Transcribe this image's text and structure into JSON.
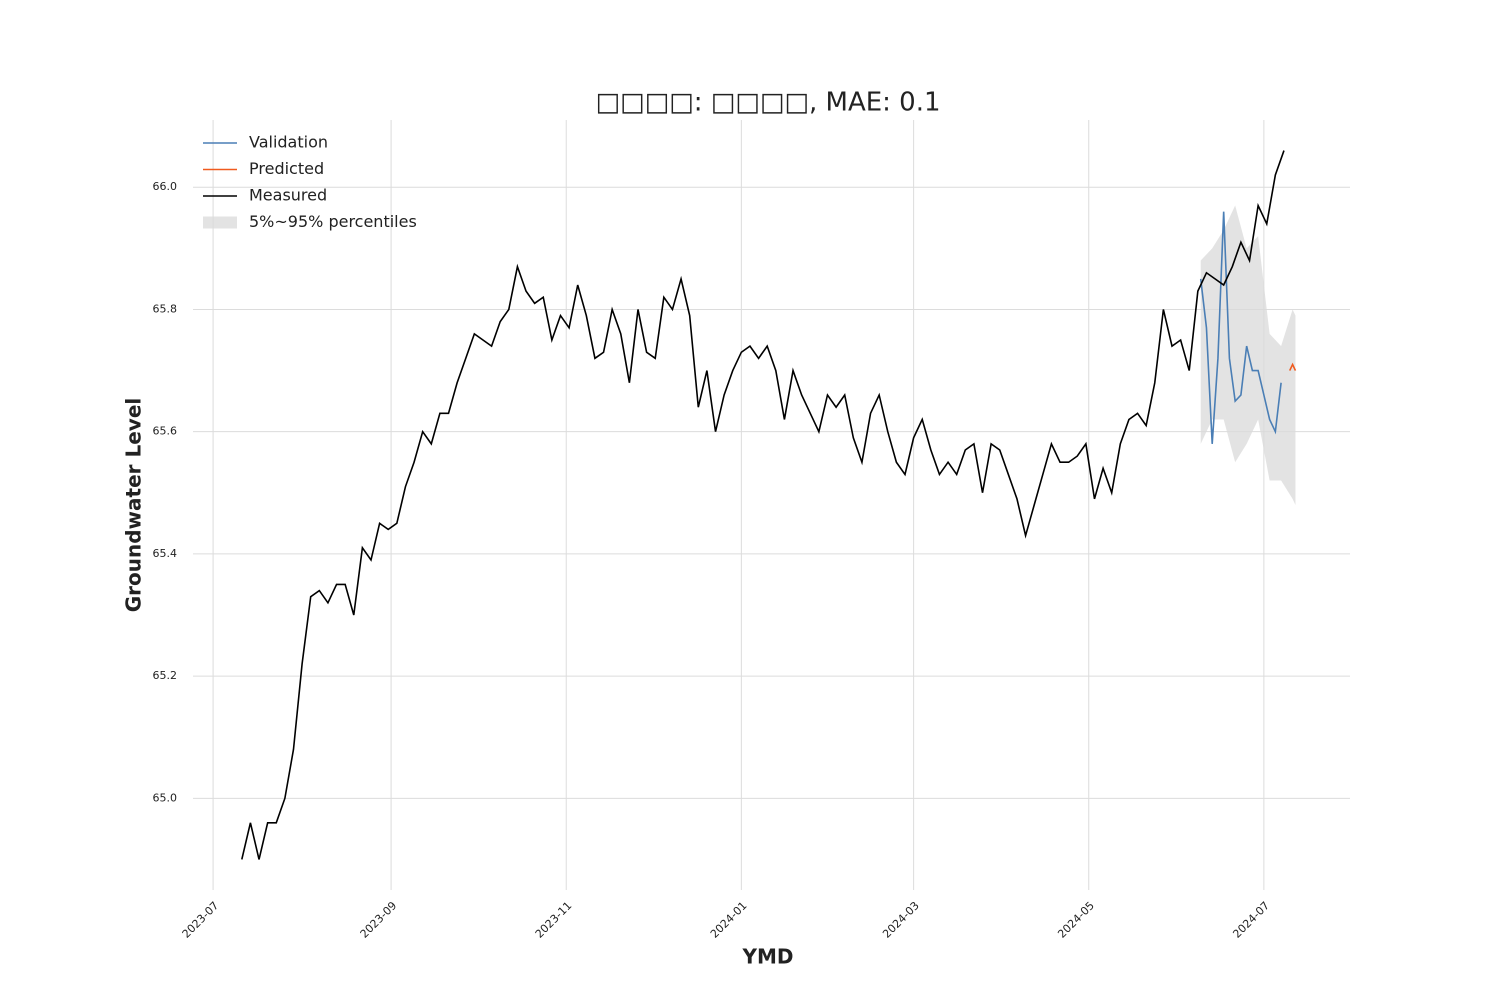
{
  "chart_data": {
    "type": "line",
    "title": "□□□□: □□□□, MAE: 0.1",
    "x_label": "YMD",
    "y_label": "Groundwater Level",
    "xlim": [
      -7,
      396
    ],
    "ylim": [
      64.85,
      66.11
    ],
    "xticks": [
      {
        "value": 0,
        "label": "2023-07"
      },
      {
        "value": 62,
        "label": "2023-09"
      },
      {
        "value": 123,
        "label": "2023-11"
      },
      {
        "value": 184,
        "label": "2024-01"
      },
      {
        "value": 244,
        "label": "2024-03"
      },
      {
        "value": 305,
        "label": "2024-05"
      },
      {
        "value": 366,
        "label": "2024-07"
      }
    ],
    "yticks": [
      {
        "value": 65,
        "label": "65.0"
      },
      65.2,
      65.4,
      65.6,
      65.8,
      {
        "value": 66,
        "label": "66.0"
      }
    ],
    "grid": true,
    "legend": "upper-left",
    "series": [
      {
        "name": "Validation",
        "color": "#4a7eb5",
        "x": [
          344,
          346,
          348,
          350,
          352,
          354,
          356,
          358,
          360,
          362,
          364,
          366,
          368,
          370,
          372
        ],
        "values": [
          65.85,
          65.77,
          65.58,
          65.72,
          65.96,
          65.72,
          65.65,
          65.66,
          65.74,
          65.7,
          65.7,
          65.66,
          65.62,
          65.6,
          65.68
        ]
      },
      {
        "name": "Predicted",
        "color": "#f05a1e",
        "x": [
          375,
          376,
          377
        ],
        "values": [
          65.7,
          65.71,
          65.7
        ]
      },
      {
        "name": "Measured",
        "color": "#000000",
        "x": [
          10,
          13,
          16,
          19,
          22,
          25,
          28,
          31,
          34,
          37,
          40,
          43,
          46,
          49,
          52,
          55,
          58,
          61,
          64,
          67,
          70,
          73,
          76,
          79,
          82,
          85,
          88,
          91,
          94,
          97,
          100,
          103,
          106,
          109,
          112,
          115,
          118,
          121,
          124,
          127,
          130,
          133,
          136,
          139,
          142,
          145,
          148,
          151,
          154,
          157,
          160,
          163,
          166,
          169,
          172,
          175,
          178,
          181,
          184,
          187,
          190,
          193,
          196,
          199,
          202,
          205,
          208,
          211,
          214,
          217,
          220,
          223,
          226,
          229,
          232,
          235,
          238,
          241,
          244,
          247,
          250,
          253,
          256,
          259,
          262,
          265,
          268,
          271,
          274,
          277,
          280,
          283,
          286,
          289,
          292,
          295,
          298,
          301,
          304,
          307,
          310,
          313,
          316,
          319,
          322,
          325,
          328,
          331,
          334,
          337,
          340,
          343,
          346,
          349,
          352,
          355,
          358,
          361,
          364,
          367,
          370,
          373
        ],
        "values": [
          64.9,
          64.96,
          64.9,
          64.96,
          64.96,
          65.0,
          65.08,
          65.22,
          65.33,
          65.34,
          65.32,
          65.35,
          65.35,
          65.3,
          65.41,
          65.39,
          65.45,
          65.44,
          65.45,
          65.51,
          65.55,
          65.6,
          65.58,
          65.63,
          65.63,
          65.68,
          65.72,
          65.76,
          65.75,
          65.74,
          65.78,
          65.8,
          65.87,
          65.83,
          65.81,
          65.82,
          65.75,
          65.79,
          65.77,
          65.84,
          65.79,
          65.72,
          65.73,
          65.8,
          65.76,
          65.68,
          65.8,
          65.73,
          65.72,
          65.82,
          65.8,
          65.85,
          65.79,
          65.64,
          65.7,
          65.6,
          65.66,
          65.7,
          65.73,
          65.74,
          65.72,
          65.74,
          65.7,
          65.62,
          65.7,
          65.66,
          65.63,
          65.6,
          65.66,
          65.64,
          65.66,
          65.59,
          65.55,
          65.63,
          65.66,
          65.6,
          65.55,
          65.53,
          65.59,
          65.62,
          65.57,
          65.53,
          65.55,
          65.53,
          65.57,
          65.58,
          65.5,
          65.58,
          65.57,
          65.53,
          65.49,
          65.43,
          65.48,
          65.53,
          65.58,
          65.55,
          65.55,
          65.56,
          65.58,
          65.49,
          65.54,
          65.5,
          65.58,
          65.62,
          65.63,
          65.61,
          65.68,
          65.8,
          65.74,
          65.75,
          65.7,
          65.83,
          65.86,
          65.85,
          65.84,
          65.87,
          65.91,
          65.88,
          65.97,
          65.94,
          66.02,
          66.06
        ]
      }
    ],
    "band": {
      "name": "5%~95% percentiles",
      "color": "#d9d9d9",
      "x": [
        344,
        348,
        352,
        356,
        360,
        364,
        368,
        372,
        376,
        377
      ],
      "lower": [
        65.58,
        65.62,
        65.62,
        65.55,
        65.58,
        65.62,
        65.52,
        65.52,
        65.49,
        65.48
      ],
      "upper": [
        65.88,
        65.9,
        65.93,
        65.97,
        65.9,
        65.92,
        65.76,
        65.74,
        65.8,
        65.79
      ]
    }
  }
}
